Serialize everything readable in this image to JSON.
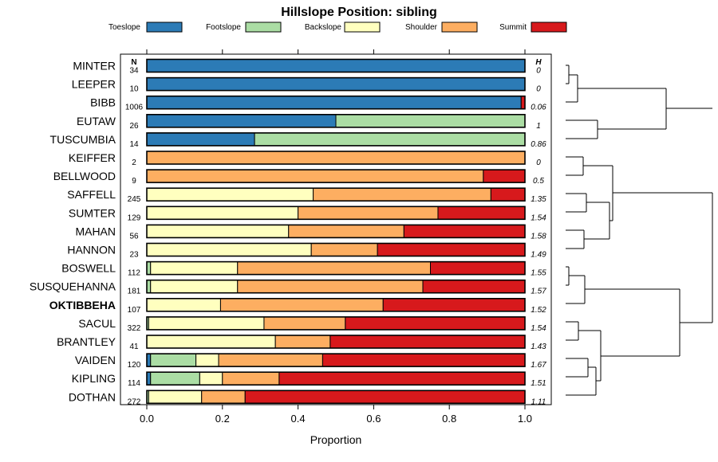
{
  "chart_data": {
    "type": "stacked-bar-horizontal",
    "title": "Hillslope Position: sibling",
    "xlabel": "Proportion",
    "xlim": [
      0,
      1
    ],
    "xticks": [
      "0.0",
      "0.2",
      "0.4",
      "0.6",
      "0.8",
      "1.0"
    ],
    "n_header": "N",
    "h_header": "H",
    "highlight": "OKTIBBEHA",
    "categories_legend": [
      {
        "name": "Toeslope",
        "color": "#2c7bb6"
      },
      {
        "name": "Footslope",
        "color": "#abdda4"
      },
      {
        "name": "Backslope",
        "color": "#ffffbf"
      },
      {
        "name": "Shoulder",
        "color": "#fdae61"
      },
      {
        "name": "Summit",
        "color": "#d7191c"
      }
    ],
    "rows": [
      {
        "label": "MINTER",
        "n": "34",
        "h": "0",
        "values": [
          1.0,
          0,
          0,
          0,
          0
        ]
      },
      {
        "label": "LEEPER",
        "n": "10",
        "h": "0",
        "values": [
          1.0,
          0,
          0,
          0,
          0
        ]
      },
      {
        "label": "BIBB",
        "n": "1006",
        "h": "0.06",
        "values": [
          0.99,
          0,
          0,
          0,
          0.01
        ]
      },
      {
        "label": "EUTAW",
        "n": "26",
        "h": "1",
        "values": [
          0.5,
          0.5,
          0,
          0,
          0
        ]
      },
      {
        "label": "TUSCUMBIA",
        "n": "14",
        "h": "0.86",
        "values": [
          0.285,
          0.715,
          0,
          0,
          0
        ]
      },
      {
        "label": "KEIFFER",
        "n": "2",
        "h": "0",
        "values": [
          0,
          0,
          0,
          1.0,
          0
        ]
      },
      {
        "label": "BELLWOOD",
        "n": "9",
        "h": "0.5",
        "values": [
          0,
          0,
          0,
          0.89,
          0.11
        ]
      },
      {
        "label": "SAFFELL",
        "n": "245",
        "h": "1.35",
        "values": [
          0,
          0,
          0.44,
          0.47,
          0.09
        ]
      },
      {
        "label": "SUMTER",
        "n": "129",
        "h": "1.54",
        "values": [
          0,
          0,
          0.4,
          0.37,
          0.23
        ]
      },
      {
        "label": "MAHAN",
        "n": "56",
        "h": "1.58",
        "values": [
          0,
          0,
          0.375,
          0.305,
          0.32
        ]
      },
      {
        "label": "HANNON",
        "n": "23",
        "h": "1.49",
        "values": [
          0,
          0,
          0.435,
          0.175,
          0.39
        ]
      },
      {
        "label": "BOSWELL",
        "n": "112",
        "h": "1.55",
        "values": [
          0,
          0.01,
          0.23,
          0.51,
          0.25
        ]
      },
      {
        "label": "SUSQUEHANNA",
        "n": "181",
        "h": "1.57",
        "values": [
          0,
          0.01,
          0.23,
          0.49,
          0.27
        ]
      },
      {
        "label": "OKTIBBEHA",
        "n": "107",
        "h": "1.52",
        "values": [
          0,
          0,
          0.195,
          0.43,
          0.375
        ]
      },
      {
        "label": "SACUL",
        "n": "322",
        "h": "1.54",
        "values": [
          0,
          0.005,
          0.305,
          0.215,
          0.475
        ]
      },
      {
        "label": "BRANTLEY",
        "n": "41",
        "h": "1.43",
        "values": [
          0,
          0,
          0.34,
          0.145,
          0.515
        ]
      },
      {
        "label": "VAIDEN",
        "n": "120",
        "h": "1.67",
        "values": [
          0.01,
          0.12,
          0.06,
          0.275,
          0.535
        ]
      },
      {
        "label": "KIPLING",
        "n": "114",
        "h": "1.51",
        "values": [
          0.01,
          0.13,
          0.06,
          0.15,
          0.65
        ]
      },
      {
        "label": "DOTHAN",
        "n": "272",
        "h": "1.11",
        "values": [
          0,
          0.005,
          0.14,
          0.115,
          0.74
        ]
      }
    ]
  }
}
